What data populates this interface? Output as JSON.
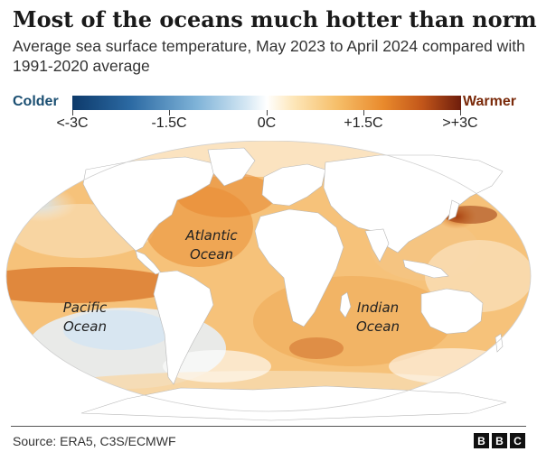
{
  "header": {
    "title": "Most of the oceans much hotter than normal",
    "subtitle": "Average sea surface temperature, May 2023 to April 2024 compared with 1991-2020 average"
  },
  "legend": {
    "cold_label": "Colder",
    "warm_label": "Warmer",
    "ticks": [
      "<-3C",
      "-1.5C",
      "0C",
      "+1.5C",
      ">+3C"
    ],
    "tick_values": [
      -3,
      -1.5,
      0,
      1.5,
      3
    ],
    "colors": {
      "coldest": "#0d3a6b",
      "neutral": "#ffffff",
      "warm": "#e98a2c",
      "warmest": "#6e1d0c"
    }
  },
  "map": {
    "projection": "Robinson",
    "land_color": "#ffffff",
    "ocean_labels": {
      "atlantic_1": "Atlantic",
      "atlantic_2": "Ocean",
      "pacific_1": "Pacific",
      "pacific_2": "Ocean",
      "indian_1": "Indian",
      "indian_2": "Ocean"
    }
  },
  "footer": {
    "source": "Source: ERA5, C3S/ECMWF",
    "logo": [
      "B",
      "B",
      "C"
    ]
  }
}
